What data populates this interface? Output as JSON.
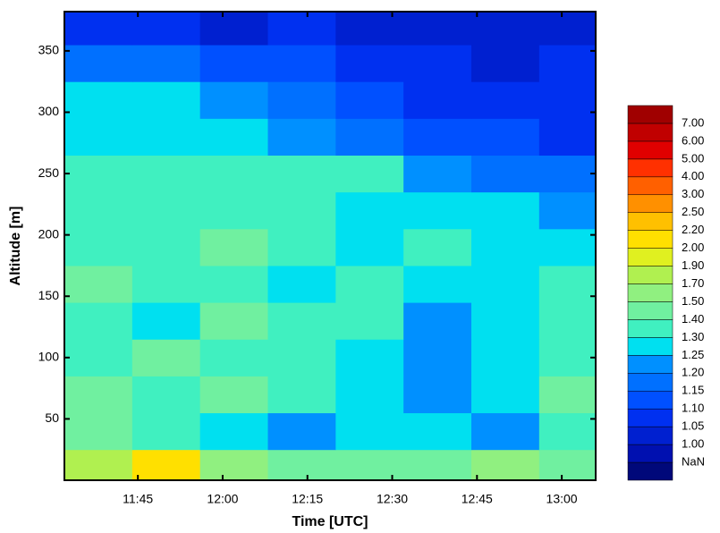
{
  "chart_data": {
    "type": "contour",
    "xlabel": "Time [UTC]",
    "ylabel": "Altitude [m]",
    "xlim": [
      "11:32",
      "13:06"
    ],
    "xticks": [
      "11:45",
      "12:00",
      "12:15",
      "12:30",
      "12:45",
      "13:00"
    ],
    "ylim": [
      0,
      382
    ],
    "yticks": [
      50,
      100,
      150,
      200,
      250,
      300,
      350
    ],
    "x": [
      "11:38",
      "11:50",
      "12:02",
      "12:14",
      "12:26",
      "12:38",
      "12:50",
      "13:02"
    ],
    "y": [
      10,
      40,
      70,
      100,
      130,
      160,
      190,
      220,
      250,
      280,
      310,
      340,
      370
    ],
    "z": [
      [
        1.9,
        2.2,
        1.7,
        1.5,
        1.6,
        1.5,
        1.7,
        1.5
      ],
      [
        1.5,
        1.4,
        1.3,
        1.25,
        1.3,
        1.3,
        1.25,
        1.4
      ],
      [
        1.5,
        1.4,
        1.5,
        1.4,
        1.3,
        1.25,
        1.3,
        1.5
      ],
      [
        1.4,
        1.5,
        1.4,
        1.4,
        1.3,
        1.25,
        1.3,
        1.4
      ],
      [
        1.4,
        1.3,
        1.5,
        1.4,
        1.4,
        1.25,
        1.3,
        1.4
      ],
      [
        1.5,
        1.4,
        1.4,
        1.3,
        1.4,
        1.3,
        1.3,
        1.4
      ],
      [
        1.4,
        1.4,
        1.5,
        1.4,
        1.3,
        1.4,
        1.3,
        1.3
      ],
      [
        1.4,
        1.4,
        1.4,
        1.4,
        1.3,
        1.3,
        1.3,
        1.25
      ],
      [
        1.4,
        1.4,
        1.4,
        1.4,
        1.4,
        1.25,
        1.2,
        1.2
      ],
      [
        1.3,
        1.3,
        1.3,
        1.25,
        1.2,
        1.15,
        1.15,
        1.1
      ],
      [
        1.3,
        1.3,
        1.25,
        1.2,
        1.15,
        1.1,
        1.1,
        1.1
      ],
      [
        1.2,
        1.2,
        1.15,
        1.15,
        1.1,
        1.1,
        1.05,
        1.1
      ],
      [
        1.1,
        1.1,
        1.05,
        1.1,
        1.05,
        1.05,
        1.05,
        1.05
      ]
    ],
    "colorbar": {
      "ticks": [
        "NaN",
        {
          "value": 1,
          "label": "1.00"
        },
        {
          "value": 1.05,
          "label": "1.05"
        },
        {
          "value": 1.1,
          "label": "1.10"
        },
        {
          "value": 1.15,
          "label": "1.15"
        },
        {
          "value": 1.2,
          "label": "1.20"
        },
        {
          "value": 1.25,
          "label": "1.25"
        },
        {
          "value": 1.3,
          "label": "1.30"
        },
        {
          "value": 1.4,
          "label": "1.40"
        },
        {
          "value": 1.5,
          "label": "1.50"
        },
        {
          "value": 1.7,
          "label": "1.70"
        },
        {
          "value": 1.9,
          "label": "1.90"
        },
        {
          "value": 2,
          "label": "2.00"
        },
        {
          "value": 2.2,
          "label": "2.20"
        },
        {
          "value": 2.5,
          "label": "2.50"
        },
        {
          "value": 3,
          "label": "3.00"
        },
        {
          "value": 4,
          "label": "4.00"
        },
        {
          "value": 5,
          "label": "5.00"
        },
        {
          "value": 6,
          "label": "6.00"
        },
        {
          "value": 7,
          "label": "7.00"
        }
      ],
      "colors": [
        "#00087a",
        "#0010b0",
        "#0020d0",
        "#0030f0",
        "#0050ff",
        "#0070ff",
        "#0090ff",
        "#00e0f0",
        "#40f0c0",
        "#70f0a0",
        "#90f080",
        "#b0f050",
        "#e0f020",
        "#ffe000",
        "#ffc000",
        "#ff9000",
        "#ff6000",
        "#ff3000",
        "#e00000",
        "#c00000",
        "#a00000"
      ]
    }
  }
}
